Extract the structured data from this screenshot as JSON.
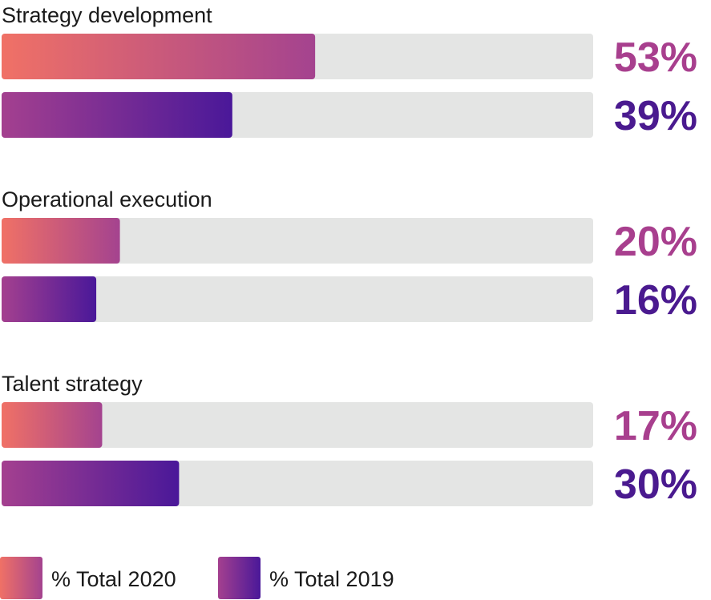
{
  "chart_data": {
    "type": "bar",
    "orientation": "horizontal",
    "categories": [
      "Strategy development",
      "Operational execution",
      "Talent strategy"
    ],
    "series": [
      {
        "name": "% Total 2020",
        "values": [
          53,
          20,
          17
        ],
        "labels": [
          "53%",
          "20%",
          "17%"
        ],
        "gradient": [
          "#f07166",
          "#a4438f"
        ],
        "label_color": "#a83f8e"
      },
      {
        "name": "% Total 2019",
        "values": [
          39,
          16,
          30
        ],
        "labels": [
          "39%",
          "16%",
          "30%"
        ],
        "gradient": [
          "#a4408f",
          "#4a1899"
        ],
        "label_color": "#4a1a8f"
      }
    ],
    "xlim": [
      0,
      100
    ],
    "track_color": "#e4e5e4",
    "grid": false,
    "legend_position": "bottom-left"
  }
}
